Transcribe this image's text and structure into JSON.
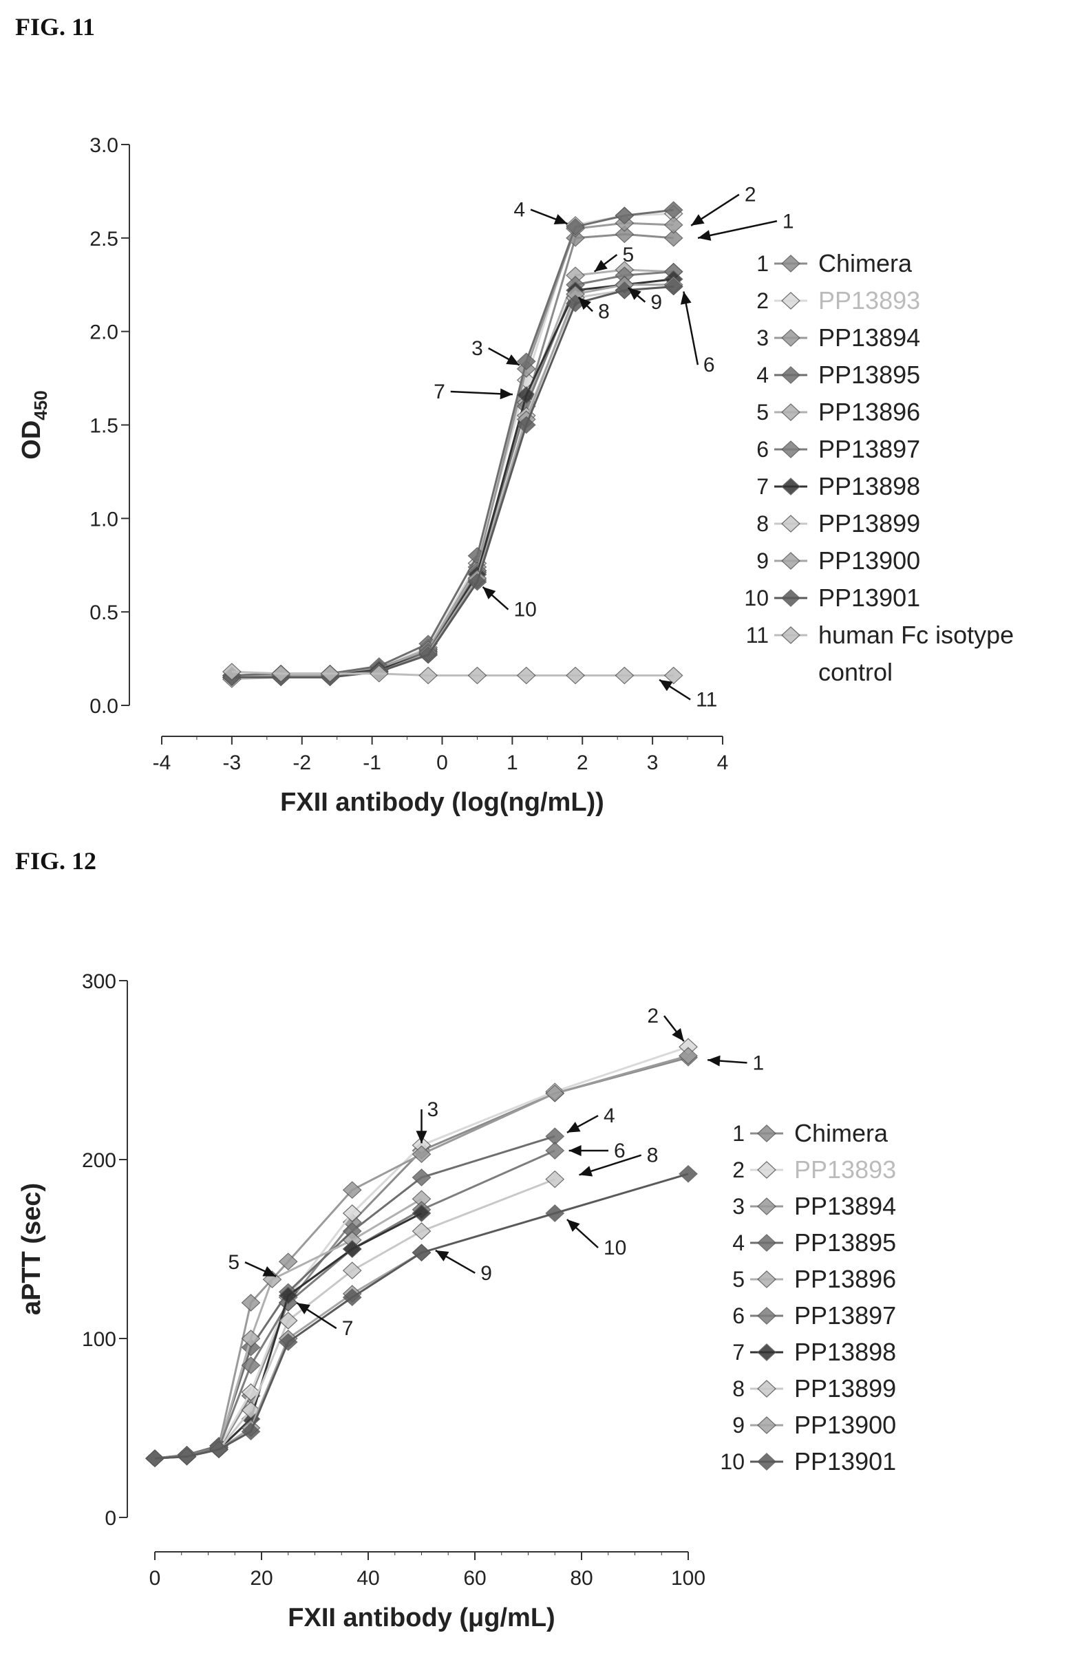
{
  "figure_labels": {
    "fig11": "FIG. 11",
    "fig12": "FIG. 12"
  },
  "chart_data": [
    {
      "type": "line",
      "title": "",
      "xlabel": "FXII antibody (log(ng/mL))",
      "ylabel_main": "OD",
      "ylabel_sub": "450",
      "xlim": [
        -4,
        4
      ],
      "ylim": [
        0.0,
        3.0
      ],
      "xticks": [
        "-4",
        "-3",
        "-2",
        "-1",
        "0",
        "1",
        "2",
        "3",
        "4"
      ],
      "yticks": [
        "0.0",
        "0.5",
        "1.0",
        "1.5",
        "2.0",
        "2.5",
        "3.0"
      ],
      "legend_position": "right",
      "x": [
        -3.0,
        -2.3,
        -1.6,
        -0.9,
        -0.2,
        0.5,
        1.2,
        1.9,
        2.6,
        3.3
      ],
      "series": [
        {
          "num": "1",
          "name": "Chimera",
          "color": "#8c8c8c",
          "values": [
            0.15,
            0.16,
            0.16,
            0.18,
            0.29,
            0.72,
            1.62,
            2.5,
            2.52,
            2.5
          ]
        },
        {
          "num": "2",
          "name": "PP13893",
          "color": "#d9d9d9",
          "values": [
            0.15,
            0.17,
            0.16,
            0.2,
            0.31,
            0.76,
            1.74,
            2.57,
            2.62,
            2.63
          ]
        },
        {
          "num": "3",
          "name": "PP13894",
          "color": "#9a9a9a",
          "values": [
            0.16,
            0.17,
            0.17,
            0.2,
            0.3,
            0.74,
            1.8,
            2.55,
            2.58,
            2.57
          ]
        },
        {
          "num": "4",
          "name": "PP13895",
          "color": "#6e6e6e",
          "values": [
            0.16,
            0.17,
            0.17,
            0.21,
            0.33,
            0.8,
            1.84,
            2.56,
            2.62,
            2.65
          ]
        },
        {
          "num": "5",
          "name": "PP13896",
          "color": "#b0b0b0",
          "values": [
            0.15,
            0.16,
            0.16,
            0.19,
            0.3,
            0.72,
            1.62,
            2.3,
            2.33,
            2.32
          ]
        },
        {
          "num": "6",
          "name": "PP13897",
          "color": "#7d7d7d",
          "values": [
            0.15,
            0.16,
            0.16,
            0.19,
            0.29,
            0.71,
            1.6,
            2.25,
            2.3,
            2.32
          ]
        },
        {
          "num": "7",
          "name": "PP13898",
          "color": "#333333",
          "values": [
            0.15,
            0.16,
            0.16,
            0.19,
            0.28,
            0.7,
            1.66,
            2.22,
            2.25,
            2.28
          ]
        },
        {
          "num": "8",
          "name": "PP13899",
          "color": "#c8c8c8",
          "values": [
            0.14,
            0.15,
            0.15,
            0.18,
            0.27,
            0.67,
            1.55,
            2.18,
            2.22,
            2.24
          ]
        },
        {
          "num": "9",
          "name": "PP13900",
          "color": "#a5a5a5",
          "values": [
            0.15,
            0.16,
            0.16,
            0.18,
            0.28,
            0.68,
            1.53,
            2.2,
            2.25,
            2.25
          ]
        },
        {
          "num": "10",
          "name": "PP13901",
          "color": "#5a5a5a",
          "values": [
            0.15,
            0.15,
            0.15,
            0.18,
            0.27,
            0.66,
            1.5,
            2.15,
            2.22,
            2.24
          ]
        },
        {
          "num": "11",
          "name": "human Fc isotype control",
          "color": "#bdbdbd",
          "values": [
            0.18,
            0.17,
            0.17,
            0.17,
            0.16,
            0.16,
            0.16,
            0.16,
            0.16,
            0.16
          ]
        }
      ],
      "annotations": [
        {
          "label": "1",
          "x": 3.4,
          "y": 2.48
        },
        {
          "label": "2",
          "x": 3.4,
          "y": 2.53
        },
        {
          "label": "3",
          "x": 1.2,
          "y": 1.8
        },
        {
          "label": "4",
          "x": 1.9,
          "y": 2.56
        },
        {
          "label": "5",
          "x": 2.1,
          "y": 2.3
        },
        {
          "label": "6",
          "x": 3.4,
          "y": 2.3
        },
        {
          "label": "7",
          "x": 1.2,
          "y": 1.66
        },
        {
          "label": "8",
          "x": 1.9,
          "y": 2.2
        },
        {
          "label": "9",
          "x": 2.6,
          "y": 2.25
        },
        {
          "label": "10",
          "x": 0.5,
          "y": 0.66
        },
        {
          "label": "11",
          "x": 3.0,
          "y": 0.16
        }
      ]
    },
    {
      "type": "line",
      "title": "",
      "xlabel": "FXII antibody (μg/mL)",
      "ylabel": "aPTT (sec)",
      "xlim": [
        0,
        100
      ],
      "ylim": [
        0,
        300
      ],
      "xticks": [
        "0",
        "20",
        "40",
        "60",
        "80",
        "100"
      ],
      "yticks": [
        "0",
        "100",
        "200",
        "300"
      ],
      "legend_position": "right",
      "series": [
        {
          "num": "1",
          "name": "Chimera",
          "color": "#8c8c8c",
          "x": [
            0,
            6,
            12,
            18,
            25,
            37,
            50,
            75,
            100
          ],
          "values": [
            33,
            34,
            38,
            68,
            120,
            165,
            205,
            237,
            257
          ]
        },
        {
          "num": "2",
          "name": "PP13893",
          "color": "#d9d9d9",
          "x": [
            0,
            6,
            12,
            18,
            25,
            37,
            50,
            75,
            100
          ],
          "values": [
            33,
            35,
            39,
            70,
            123,
            170,
            208,
            238,
            263
          ]
        },
        {
          "num": "3",
          "name": "PP13894",
          "color": "#9a9a9a",
          "x": [
            0,
            6,
            12,
            18,
            25,
            37,
            50,
            75,
            100
          ],
          "values": [
            33,
            35,
            40,
            120,
            143,
            183,
            203,
            237,
            258
          ]
        },
        {
          "num": "4",
          "name": "PP13895",
          "color": "#6e6e6e",
          "x": [
            0,
            6,
            12,
            18,
            25,
            37,
            50,
            75
          ],
          "values": [
            33,
            35,
            40,
            95,
            126,
            160,
            190,
            213
          ]
        },
        {
          "num": "5",
          "name": "PP13896",
          "color": "#b0b0b0",
          "x": [
            0,
            6,
            12,
            18,
            22,
            37,
            50
          ],
          "values": [
            33,
            35,
            39,
            100,
            133,
            155,
            178
          ]
        },
        {
          "num": "6",
          "name": "PP13897",
          "color": "#7d7d7d",
          "x": [
            0,
            6,
            12,
            18,
            25,
            37,
            50,
            75
          ],
          "values": [
            33,
            35,
            39,
            85,
            120,
            150,
            172,
            205
          ]
        },
        {
          "num": "7",
          "name": "PP13898",
          "color": "#333333",
          "x": [
            0,
            6,
            12,
            18,
            25,
            37,
            50
          ],
          "values": [
            33,
            34,
            38,
            55,
            124,
            150,
            170
          ]
        },
        {
          "num": "8",
          "name": "PP13899",
          "color": "#c8c8c8",
          "x": [
            0,
            6,
            12,
            18,
            25,
            37,
            50,
            75
          ],
          "values": [
            33,
            34,
            38,
            60,
            110,
            138,
            160,
            189
          ]
        },
        {
          "num": "9",
          "name": "PP13900",
          "color": "#a5a5a5",
          "x": [
            0,
            6,
            12,
            18,
            25,
            37,
            50
          ],
          "values": [
            33,
            34,
            38,
            50,
            100,
            125,
            148
          ]
        },
        {
          "num": "10",
          "name": "PP13901",
          "color": "#5a5a5a",
          "x": [
            0,
            6,
            12,
            18,
            25,
            37,
            50,
            75,
            100
          ],
          "values": [
            33,
            34,
            38,
            48,
            98,
            123,
            148,
            170,
            192
          ]
        }
      ],
      "annotations": [
        {
          "label": "1",
          "x": 102,
          "y": 256
        },
        {
          "label": "2",
          "x": 100,
          "y": 263
        },
        {
          "label": "3",
          "x": 50,
          "y": 205
        },
        {
          "label": "4",
          "x": 76,
          "y": 213
        },
        {
          "label": "5",
          "x": 24,
          "y": 133
        },
        {
          "label": "6",
          "x": 76,
          "y": 205
        },
        {
          "label": "7",
          "x": 25,
          "y": 123
        },
        {
          "label": "8",
          "x": 77,
          "y": 189
        },
        {
          "label": "9",
          "x": 51,
          "y": 152
        },
        {
          "label": "10",
          "x": 76,
          "y": 170
        }
      ]
    }
  ]
}
